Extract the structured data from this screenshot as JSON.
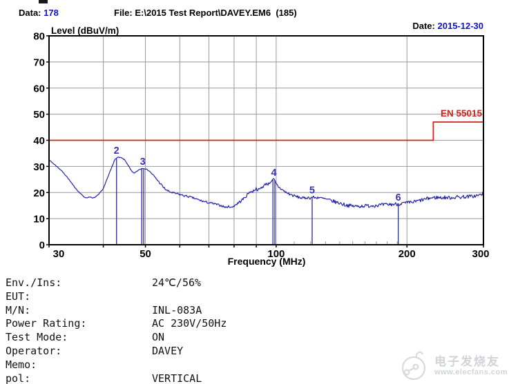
{
  "header": {
    "data_label": "Data:",
    "data_value": "178",
    "file_label": "File:",
    "file_value": "E:\\2015 Test Report\\DAVEY.EM6  (185)",
    "date_label": "Date:",
    "date_value": "2015-12-30"
  },
  "colors": {
    "accent_blue": "#1111cc",
    "trace_blue": "#2323ae",
    "marker_blue": "#3434b8",
    "limit_red": "#cc2418",
    "grid_gray": "#999999",
    "frame_black": "#000000",
    "watermark_gray": "#ccd0d5"
  },
  "chart_data": {
    "type": "line",
    "title": "",
    "ylabel": "Level (dBuV/m)",
    "xlabel": "Frequency (MHz)",
    "x_scale": "log",
    "xlim": [
      30,
      300
    ],
    "ylim": [
      0,
      80
    ],
    "grid": true,
    "y_ticks": [
      0,
      10,
      20,
      30,
      40,
      50,
      60,
      70,
      80
    ],
    "x_tick_labels": [
      "30",
      "50",
      "100",
      "200",
      "300"
    ],
    "x_gridlines": [
      40,
      50,
      60,
      70,
      80,
      90,
      100,
      200
    ],
    "x_minor_ticks": [
      110,
      120,
      130,
      140,
      150,
      160,
      170,
      180,
      190
    ],
    "limit_line": {
      "label": "EN 55015",
      "segments": [
        {
          "from_mhz": 30,
          "to_mhz": 230,
          "level_db": 40
        },
        {
          "from_mhz": 230,
          "to_mhz": 300,
          "level_db": 47
        }
      ]
    },
    "markers": [
      {
        "id": "2",
        "freq_mhz": 42.9,
        "level_db": 33.5,
        "double": false
      },
      {
        "id": "3",
        "freq_mhz": 49.3,
        "level_db": 29.3,
        "double": true
      },
      {
        "id": "4",
        "freq_mhz": 98.8,
        "level_db": 25.1,
        "double": true
      },
      {
        "id": "5",
        "freq_mhz": 121.0,
        "level_db": 18.3,
        "double": false
      },
      {
        "id": "6",
        "freq_mhz": 191.0,
        "level_db": 15.6,
        "double": false
      }
    ],
    "noise_segments": [
      {
        "to_mhz": 52,
        "amp_db": 0.15
      },
      {
        "to_mhz": 80,
        "amp_db": 0.4
      },
      {
        "to_mhz": 130,
        "amp_db": 0.55
      },
      {
        "to_mhz": 300,
        "amp_db": 0.7
      }
    ],
    "trace_points": [
      [
        30,
        32.5
      ],
      [
        31,
        30.5
      ],
      [
        32,
        28.5
      ],
      [
        33,
        26
      ],
      [
        34,
        23
      ],
      [
        35,
        20.5
      ],
      [
        36,
        18.5
      ],
      [
        36.6,
        17.9
      ],
      [
        37.2,
        18.4
      ],
      [
        37.8,
        17.8
      ],
      [
        38.4,
        18.3
      ],
      [
        39,
        19.2
      ],
      [
        40,
        21.5
      ],
      [
        41,
        26
      ],
      [
        42,
        30.5
      ],
      [
        42.6,
        32.8
      ],
      [
        43.2,
        33.5
      ],
      [
        44,
        33.3
      ],
      [
        44.8,
        32.5
      ],
      [
        45.6,
        30.5
      ],
      [
        46.4,
        28.3
      ],
      [
        47,
        27.4
      ],
      [
        47.6,
        27.9
      ],
      [
        48.4,
        28.8
      ],
      [
        49.3,
        29.3
      ],
      [
        50,
        29.1
      ],
      [
        51,
        28.3
      ],
      [
        52,
        26.8
      ],
      [
        53,
        25.2
      ],
      [
        54,
        23.6
      ],
      [
        55,
        22
      ],
      [
        56,
        20.8
      ],
      [
        57,
        20.2
      ],
      [
        58,
        19.8
      ],
      [
        59.5,
        19.4
      ],
      [
        61,
        18.9
      ],
      [
        63,
        18.4
      ],
      [
        65,
        17.7
      ],
      [
        67,
        16.9
      ],
      [
        69,
        16.3
      ],
      [
        71,
        15.9
      ],
      [
        73,
        15.4
      ],
      [
        75,
        14.9
      ],
      [
        76.5,
        14.3
      ],
      [
        78,
        14.7
      ],
      [
        79,
        14.2
      ],
      [
        80,
        15
      ],
      [
        81.5,
        15.8
      ],
      [
        83,
        16.8
      ],
      [
        84.5,
        17.9
      ],
      [
        86,
        19.3
      ],
      [
        87,
        20.5
      ],
      [
        88,
        20.1
      ],
      [
        89,
        21
      ],
      [
        90,
        21.5
      ],
      [
        91,
        20.9
      ],
      [
        92,
        21.6
      ],
      [
        93,
        22.2
      ],
      [
        94,
        22.8
      ],
      [
        95,
        23.5
      ],
      [
        96,
        23.2
      ],
      [
        97,
        24.2
      ],
      [
        98,
        24.5
      ],
      [
        98.8,
        25.1
      ],
      [
        99.6,
        23.8
      ],
      [
        100.5,
        22.8
      ],
      [
        101.5,
        22
      ],
      [
        103,
        21.2
      ],
      [
        104.5,
        20.4
      ],
      [
        106,
        19.8
      ],
      [
        108,
        19.2
      ],
      [
        110,
        18.7
      ],
      [
        112,
        18.3
      ],
      [
        114,
        18
      ],
      [
        116,
        17.8
      ],
      [
        118,
        18.1
      ],
      [
        120,
        17.9
      ],
      [
        121.5,
        18.3
      ],
      [
        123,
        17.9
      ],
      [
        125,
        18.2
      ],
      [
        127,
        17.8
      ],
      [
        129,
        17.6
      ],
      [
        132,
        17.1
      ],
      [
        135,
        16.7
      ],
      [
        138,
        16.2
      ],
      [
        141,
        15.8
      ],
      [
        144,
        15.3
      ],
      [
        147,
        15
      ],
      [
        150,
        14.8
      ],
      [
        153,
        14.7
      ],
      [
        156,
        14.8
      ],
      [
        159,
        14.9
      ],
      [
        162,
        14.9
      ],
      [
        166,
        15
      ],
      [
        170,
        15.1
      ],
      [
        174,
        15.2
      ],
      [
        178,
        15.3
      ],
      [
        182,
        15.4
      ],
      [
        186,
        15.5
      ],
      [
        190,
        15.6
      ],
      [
        194,
        15.8
      ],
      [
        198,
        15.9
      ],
      [
        202,
        16.1
      ],
      [
        206,
        16.3
      ],
      [
        210,
        16.6
      ],
      [
        215,
        17
      ],
      [
        220,
        17.4
      ],
      [
        225,
        17.8
      ],
      [
        230,
        18
      ],
      [
        235,
        18.1
      ],
      [
        240,
        18
      ],
      [
        245,
        18.1
      ],
      [
        250,
        18
      ],
      [
        255,
        18.1
      ],
      [
        260,
        18.3
      ],
      [
        265,
        18.2
      ],
      [
        270,
        18.4
      ],
      [
        275,
        18.4
      ],
      [
        280,
        18.5
      ],
      [
        285,
        18.6
      ],
      [
        290,
        18.8
      ],
      [
        294,
        19
      ],
      [
        297,
        19.3
      ],
      [
        300,
        19.7
      ]
    ]
  },
  "info_table": {
    "rows": [
      {
        "label": "Env./Ins:",
        "value": "24℃/56%"
      },
      {
        "label": "EUT:",
        "value": ""
      },
      {
        "label": "M/N:",
        "value": "INL-083A"
      },
      {
        "label": "Power Rating:",
        "value": "AC 230V/50Hz"
      },
      {
        "label": "Test Mode:",
        "value": "ON"
      },
      {
        "label": "Operator:",
        "value": "DAVEY"
      },
      {
        "label": "Memo:",
        "value": ""
      },
      {
        "label": "pol:",
        "value": "VERTICAL"
      }
    ]
  },
  "watermark": {
    "brand_cn": "电子发烧友",
    "url": "www.elecfans.com"
  }
}
